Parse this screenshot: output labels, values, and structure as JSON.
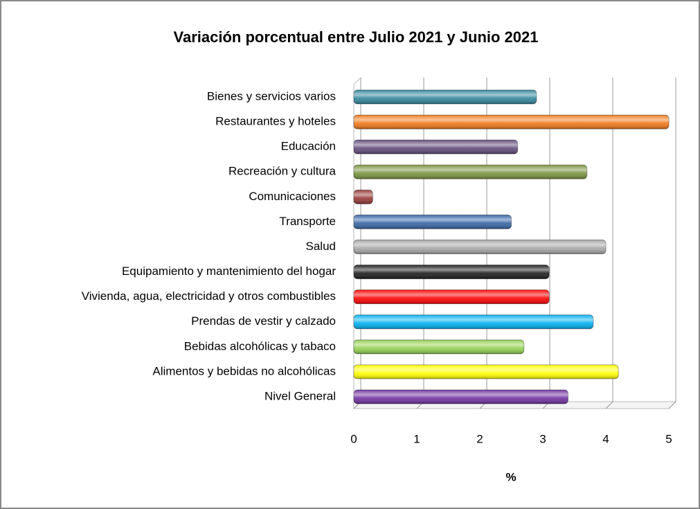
{
  "chart_data": {
    "type": "barh",
    "title": "Variación porcentual entre Julio 2021 y Junio 2021",
    "x_label": "%",
    "categories": [
      "Bienes y servicios varios",
      "Restaurantes y hoteles",
      "Educación",
      "Recreación y cultura",
      "Comunicaciones",
      "Transporte",
      "Salud",
      "Equipamiento y mantenimiento del hogar",
      "Vivienda, agua, electricidad y otros combustibles",
      "Prendas de vestir y calzado",
      "Bebidas alcohólicas y tabaco",
      "Alimentos y bebidas no alcohólicas",
      "Nivel General"
    ],
    "values": [
      2.9,
      5.0,
      2.6,
      3.7,
      0.3,
      2.5,
      4.0,
      3.1,
      3.1,
      3.8,
      2.7,
      4.2,
      3.4
    ],
    "colors": [
      "#31859c",
      "#f07818",
      "#60497a",
      "#77933c",
      "#953735",
      "#3464a4",
      "#a6a6a6",
      "#1a1a1a",
      "#ff0000",
      "#00b0f0",
      "#92d050",
      "#ffff00",
      "#7030a0"
    ],
    "xlim": [
      0,
      5
    ],
    "xticks": [
      0,
      1,
      2,
      3,
      4,
      5
    ],
    "grid": true
  }
}
